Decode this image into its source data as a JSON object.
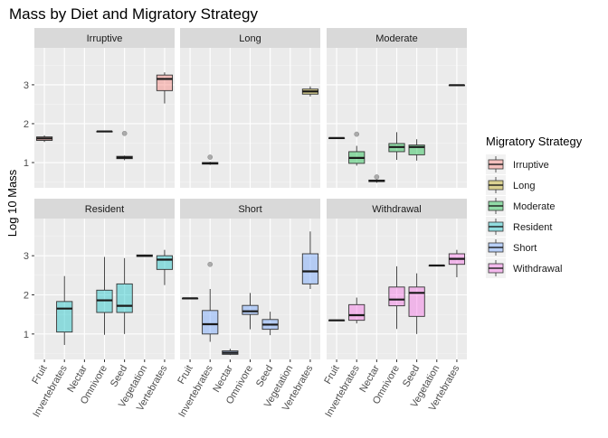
{
  "chart_data": {
    "type": "boxplot",
    "title": "Mass by Diet and Migratory Strategy",
    "ylabel": "Log 10 Mass",
    "xlabel": "",
    "ylim": [
      0.35,
      3.95
    ],
    "yticks": [
      1,
      2,
      3
    ],
    "categories": [
      "Fruit",
      "Invertebrates",
      "Nectar",
      "Omnivore",
      "Seed",
      "Vegetation",
      "Vertebrates"
    ],
    "legend": {
      "title": "Migratory Strategy",
      "position": "right",
      "entries": [
        "Irruptive",
        "Long",
        "Moderate",
        "Resident",
        "Short",
        "Withdrawal"
      ]
    },
    "colors": {
      "Irruptive": "#F8766D",
      "Long": "#B79F00",
      "Moderate": "#00BA38",
      "Resident": "#00BFC4",
      "Short": "#619CFF",
      "Withdrawal": "#F564E3",
      "panel_bg": "#EBEBEB",
      "strip_bg": "#D9D9D9",
      "outlier": "#999999"
    },
    "grid": true,
    "panels": [
      {
        "name": "Irruptive",
        "boxes": [
          {
            "category": "Fruit",
            "min": 1.53,
            "q1": 1.57,
            "median": 1.62,
            "q3": 1.66,
            "max": 1.7,
            "outliers": []
          },
          {
            "category": "Omnivore",
            "min": 1.79,
            "q1": 1.79,
            "median": 1.8,
            "q3": 1.8,
            "max": 1.81,
            "outliers": []
          },
          {
            "category": "Seed",
            "min": 1.06,
            "q1": 1.1,
            "median": 1.13,
            "q3": 1.16,
            "max": 1.18,
            "outliers": [
              1.75
            ]
          },
          {
            "category": "Vertebrates",
            "min": 2.52,
            "q1": 2.85,
            "median": 3.15,
            "q3": 3.25,
            "max": 3.32,
            "outliers": []
          }
        ]
      },
      {
        "name": "Long",
        "boxes": [
          {
            "category": "Invertebrates",
            "min": 0.94,
            "q1": 0.96,
            "median": 0.98,
            "q3": 1.0,
            "max": 1.02,
            "outliers": [
              1.14
            ]
          },
          {
            "category": "Vertebrates",
            "min": 2.7,
            "q1": 2.76,
            "median": 2.83,
            "q3": 2.89,
            "max": 2.96,
            "outliers": []
          }
        ]
      },
      {
        "name": "Moderate",
        "boxes": [
          {
            "category": "Fruit",
            "min": 1.62,
            "q1": 1.62,
            "median": 1.63,
            "q3": 1.63,
            "max": 1.64,
            "outliers": []
          },
          {
            "category": "Invertebrates",
            "min": 0.92,
            "q1": 0.98,
            "median": 1.12,
            "q3": 1.28,
            "max": 1.43,
            "outliers": [
              1.73
            ]
          },
          {
            "category": "Nectar",
            "min": 0.48,
            "q1": 0.51,
            "median": 0.53,
            "q3": 0.55,
            "max": 0.57,
            "outliers": [
              0.63
            ]
          },
          {
            "category": "Omnivore",
            "min": 1.07,
            "q1": 1.28,
            "median": 1.4,
            "q3": 1.49,
            "max": 1.78,
            "outliers": []
          },
          {
            "category": "Seed",
            "min": 1.05,
            "q1": 1.2,
            "median": 1.4,
            "q3": 1.45,
            "max": 1.6,
            "outliers": []
          },
          {
            "category": "Vertebrates",
            "min": 2.98,
            "q1": 2.98,
            "median": 2.99,
            "q3": 2.99,
            "max": 3.0,
            "outliers": []
          }
        ]
      },
      {
        "name": "Resident",
        "boxes": [
          {
            "category": "Invertebrates",
            "min": 0.72,
            "q1": 1.05,
            "median": 1.65,
            "q3": 1.83,
            "max": 2.48,
            "outliers": []
          },
          {
            "category": "Omnivore",
            "min": 0.98,
            "q1": 1.55,
            "median": 1.86,
            "q3": 2.12,
            "max": 2.97,
            "outliers": []
          },
          {
            "category": "Seed",
            "min": 1.0,
            "q1": 1.55,
            "median": 1.72,
            "q3": 2.28,
            "max": 2.94,
            "outliers": []
          },
          {
            "category": "Vegetation",
            "min": 2.97,
            "q1": 2.98,
            "median": 3.0,
            "q3": 3.02,
            "max": 3.03,
            "outliers": []
          },
          {
            "category": "Vertebrates",
            "min": 2.25,
            "q1": 2.65,
            "median": 2.9,
            "q3": 3.0,
            "max": 3.15,
            "outliers": []
          }
        ]
      },
      {
        "name": "Short",
        "boxes": [
          {
            "category": "Fruit",
            "min": 1.9,
            "q1": 1.9,
            "median": 1.91,
            "q3": 1.91,
            "max": 1.92,
            "outliers": []
          },
          {
            "category": "Invertebrates",
            "min": 0.8,
            "q1": 1.0,
            "median": 1.25,
            "q3": 1.6,
            "max": 2.15,
            "outliers": [
              2.78
            ]
          },
          {
            "category": "Nectar",
            "min": 0.46,
            "q1": 0.48,
            "median": 0.52,
            "q3": 0.57,
            "max": 0.62,
            "outliers": []
          },
          {
            "category": "Omnivore",
            "min": 1.12,
            "q1": 1.5,
            "median": 1.58,
            "q3": 1.73,
            "max": 2.05,
            "outliers": []
          },
          {
            "category": "Seed",
            "min": 0.97,
            "q1": 1.12,
            "median": 1.24,
            "q3": 1.37,
            "max": 1.57,
            "outliers": []
          },
          {
            "category": "Vertebrates",
            "min": 2.15,
            "q1": 2.28,
            "median": 2.6,
            "q3": 3.05,
            "max": 3.62,
            "outliers": []
          }
        ]
      },
      {
        "name": "Withdrawal",
        "boxes": [
          {
            "category": "Fruit",
            "min": 1.33,
            "q1": 1.34,
            "median": 1.35,
            "q3": 1.35,
            "max": 1.36,
            "outliers": []
          },
          {
            "category": "Invertebrates",
            "min": 1.27,
            "q1": 1.35,
            "median": 1.48,
            "q3": 1.75,
            "max": 1.93,
            "outliers": []
          },
          {
            "category": "Omnivore",
            "min": 1.13,
            "q1": 1.72,
            "median": 1.88,
            "q3": 2.2,
            "max": 2.73,
            "outliers": []
          },
          {
            "category": "Seed",
            "min": 1.0,
            "q1": 1.45,
            "median": 2.05,
            "q3": 2.2,
            "max": 2.55,
            "outliers": []
          },
          {
            "category": "Vegetation",
            "min": 2.73,
            "q1": 2.74,
            "median": 2.75,
            "q3": 2.75,
            "max": 2.76,
            "outliers": []
          },
          {
            "category": "Vertebrates",
            "min": 2.45,
            "q1": 2.78,
            "median": 2.92,
            "q3": 3.05,
            "max": 3.15,
            "outliers": []
          }
        ]
      }
    ]
  }
}
